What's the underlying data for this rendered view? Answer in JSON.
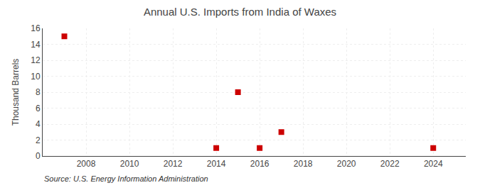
{
  "chart_data": {
    "type": "scatter",
    "title": "Annual U.S. Imports from India of Waxes",
    "ylabel": "Thousand Barrels",
    "x": [
      2007,
      2014,
      2015,
      2016,
      2017,
      2024
    ],
    "values": [
      15,
      1,
      8,
      1,
      3,
      1
    ],
    "color": "#cc0000",
    "marker": "square",
    "xlim": [
      2006.0,
      2025.5
    ],
    "xticks": [
      2008,
      2010,
      2012,
      2014,
      2016,
      2018,
      2020,
      2022,
      2024
    ],
    "ylim": [
      0,
      16
    ],
    "yticks": [
      0,
      2,
      4,
      6,
      8,
      10,
      12,
      14,
      16
    ],
    "grid": true,
    "annotations": [
      "Source: U.S. Energy Information Administration"
    ]
  }
}
